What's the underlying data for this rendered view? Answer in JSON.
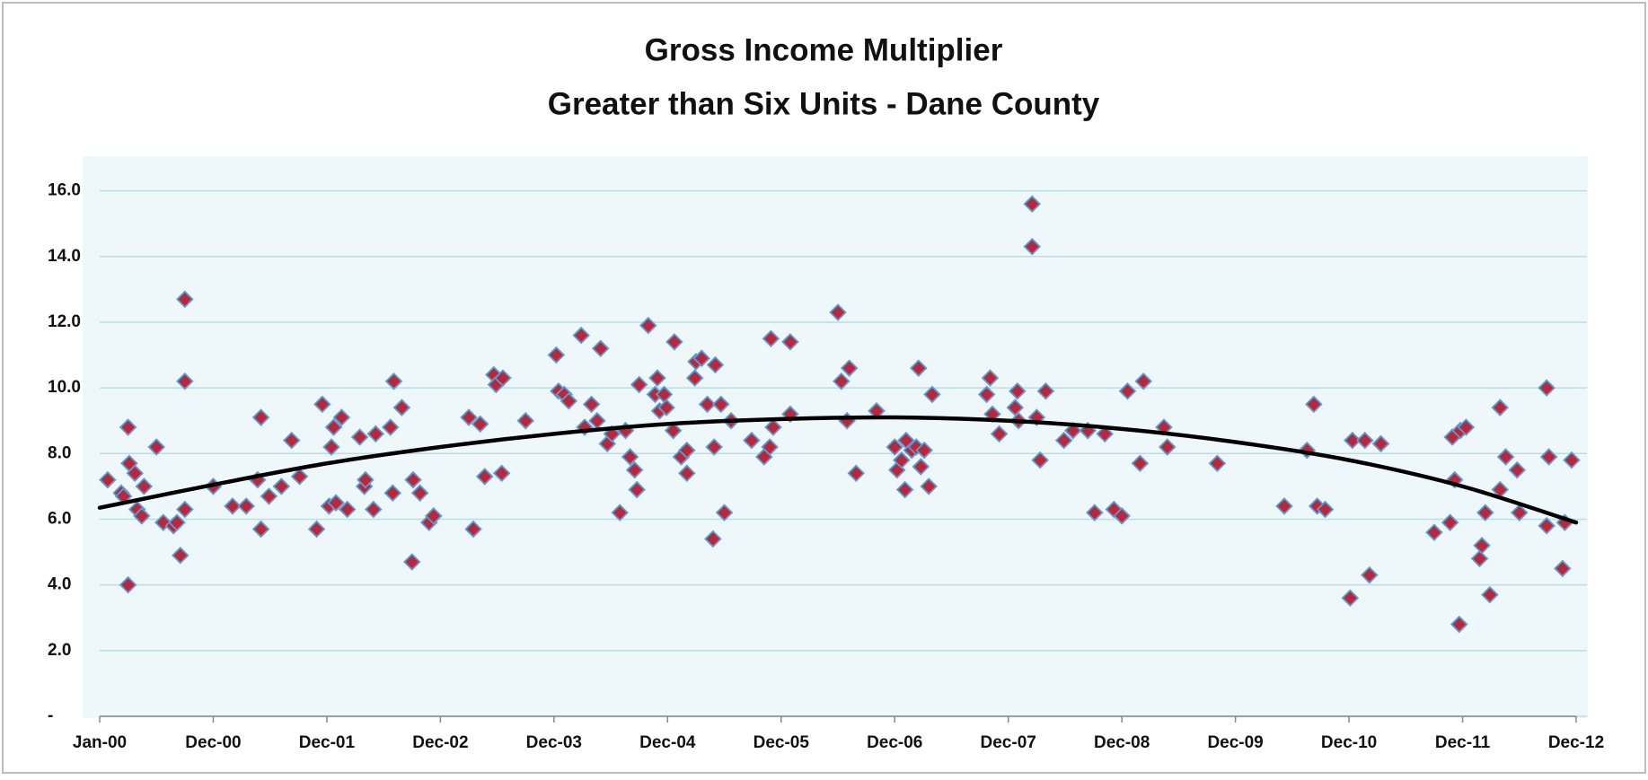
{
  "chart_data": {
    "type": "scatter",
    "title": [
      "Gross Income Multiplier",
      "Greater than Six Units - Dane County"
    ],
    "marker_color": "#b8283c",
    "marker_edge_color": "#5b9bd5",
    "grid": true,
    "xlim": [
      0,
      13
    ],
    "ylim": [
      0,
      17
    ],
    "xticks": [
      {
        "value": 0,
        "label": "Jan-00"
      },
      {
        "value": 1,
        "label": "Dec-00"
      },
      {
        "value": 2,
        "label": "Dec-01"
      },
      {
        "value": 3,
        "label": "Dec-02"
      },
      {
        "value": 4,
        "label": "Dec-03"
      },
      {
        "value": 5,
        "label": "Dec-04"
      },
      {
        "value": 6,
        "label": "Dec-05"
      },
      {
        "value": 7,
        "label": "Dec-06"
      },
      {
        "value": 8,
        "label": "Dec-07"
      },
      {
        "value": 9,
        "label": "Dec-08"
      },
      {
        "value": 10,
        "label": "Dec-09"
      },
      {
        "value": 11,
        "label": "Dec-10"
      },
      {
        "value": 12,
        "label": "Dec-11"
      },
      {
        "value": 13,
        "label": "Dec-12"
      }
    ],
    "yticks": [
      {
        "value": 0,
        "label": "-"
      },
      {
        "value": 2,
        "label": "2.0"
      },
      {
        "value": 4,
        "label": "4.0"
      },
      {
        "value": 6,
        "label": "6.0"
      },
      {
        "value": 8,
        "label": "8.0"
      },
      {
        "value": 10,
        "label": "10.0"
      },
      {
        "value": 12,
        "label": "12.0"
      },
      {
        "value": 14,
        "label": "14.0"
      },
      {
        "value": 16,
        "label": "16.0"
      }
    ],
    "x": [
      0.07,
      0.19,
      0.21,
      0.25,
      0.25,
      0.26,
      0.31,
      0.33,
      0.37,
      0.39,
      0.5,
      0.56,
      0.65,
      0.68,
      0.71,
      0.75,
      0.75,
      0.75,
      1.0,
      1.17,
      1.29,
      1.39,
      1.42,
      1.42,
      1.49,
      1.6,
      1.69,
      1.76,
      1.91,
      1.96,
      2.02,
      2.04,
      2.06,
      2.08,
      2.13,
      2.18,
      2.29,
      2.33,
      2.34,
      2.41,
      2.43,
      2.56,
      2.58,
      2.59,
      2.66,
      2.75,
      2.76,
      2.82,
      2.9,
      2.94,
      3.25,
      3.29,
      3.35,
      3.39,
      3.47,
      3.49,
      3.54,
      3.55,
      3.75,
      4.02,
      4.04,
      4.09,
      4.13,
      4.24,
      4.27,
      4.33,
      4.38,
      4.41,
      4.47,
      4.51,
      4.58,
      4.63,
      4.67,
      4.71,
      4.73,
      4.75,
      4.83,
      4.89,
      4.91,
      4.93,
      4.97,
      4.99,
      5.05,
      5.06,
      5.12,
      5.17,
      5.17,
      5.24,
      5.25,
      5.3,
      5.35,
      5.4,
      5.41,
      5.42,
      5.47,
      5.5,
      5.56,
      5.74,
      5.85,
      5.9,
      5.91,
      5.93,
      6.08,
      6.08,
      6.5,
      6.53,
      6.58,
      6.6,
      6.66,
      6.84,
      7.0,
      7.02,
      7.06,
      7.09,
      7.1,
      7.15,
      7.19,
      7.21,
      7.23,
      7.26,
      7.3,
      7.33,
      7.81,
      7.84,
      7.86,
      7.92,
      8.06,
      8.08,
      8.09,
      8.21,
      8.21,
      8.25,
      8.28,
      8.33,
      8.49,
      8.57,
      8.7,
      8.76,
      8.85,
      8.93,
      9.0,
      9.05,
      9.16,
      9.19,
      9.37,
      9.4,
      9.84,
      10.43,
      10.63,
      10.69,
      10.72,
      10.79,
      11.01,
      11.03,
      11.14,
      11.18,
      11.28,
      11.75,
      11.89,
      11.91,
      11.93,
      11.97,
      11.98,
      12.03,
      12.15,
      12.17,
      12.2,
      12.24,
      12.33,
      12.33,
      12.38,
      12.48,
      12.5,
      12.74,
      12.74,
      12.76,
      12.88,
      12.9,
      12.96
    ],
    "values": [
      7.2,
      6.8,
      6.7,
      8.8,
      4.0,
      7.7,
      7.4,
      6.3,
      6.1,
      7.0,
      8.2,
      5.9,
      5.8,
      5.9,
      4.9,
      6.3,
      12.7,
      10.2,
      7.0,
      6.4,
      6.4,
      7.2,
      5.7,
      9.1,
      6.7,
      7.0,
      8.4,
      7.3,
      5.7,
      9.5,
      6.4,
      8.2,
      8.8,
      6.5,
      9.1,
      6.3,
      8.5,
      7.0,
      7.2,
      6.3,
      8.6,
      8.8,
      6.8,
      10.2,
      9.4,
      4.7,
      7.2,
      6.8,
      5.9,
      6.1,
      9.1,
      5.7,
      8.9,
      7.3,
      10.4,
      10.1,
      7.4,
      10.3,
      9.0,
      11.0,
      9.9,
      9.8,
      9.6,
      11.6,
      8.8,
      9.5,
      9.0,
      11.2,
      8.3,
      8.6,
      6.2,
      8.7,
      7.9,
      7.5,
      6.9,
      10.1,
      11.9,
      9.8,
      10.3,
      9.3,
      9.8,
      9.4,
      8.7,
      11.4,
      7.9,
      7.4,
      8.1,
      10.3,
      10.8,
      10.9,
      9.5,
      5.4,
      8.2,
      10.7,
      9.5,
      6.2,
      9.0,
      8.4,
      7.9,
      8.2,
      11.5,
      8.8,
      11.4,
      9.2,
      12.3,
      10.2,
      9.0,
      10.6,
      7.4,
      9.3,
      8.2,
      7.5,
      7.8,
      6.9,
      8.4,
      8.1,
      8.2,
      10.6,
      7.6,
      8.1,
      7.0,
      9.8,
      9.8,
      10.3,
      9.2,
      8.6,
      9.4,
      9.9,
      9.0,
      15.6,
      14.3,
      9.1,
      7.8,
      9.9,
      8.4,
      8.7,
      8.7,
      6.2,
      8.6,
      6.3,
      6.1,
      9.9,
      7.7,
      10.2,
      8.8,
      8.2,
      7.7,
      6.4,
      8.1,
      9.5,
      6.4,
      6.3,
      3.6,
      8.4,
      8.4,
      4.3,
      8.3,
      5.6,
      5.9,
      8.5,
      7.2,
      2.8,
      8.7,
      8.8,
      4.8,
      5.2,
      6.2,
      3.7,
      6.9,
      9.4,
      7.9,
      7.5,
      6.2,
      10.0,
      5.8,
      7.9,
      4.5,
      5.9,
      7.8
    ],
    "trendline": {
      "color": "#000000",
      "x": [
        0,
        1,
        2,
        3,
        4,
        5,
        6,
        7,
        8,
        9,
        10,
        11,
        12,
        13
      ],
      "values": [
        6.35,
        7.05,
        7.7,
        8.2,
        8.6,
        8.9,
        9.05,
        9.1,
        9.0,
        8.75,
        8.35,
        7.8,
        7.0,
        5.9
      ]
    }
  }
}
